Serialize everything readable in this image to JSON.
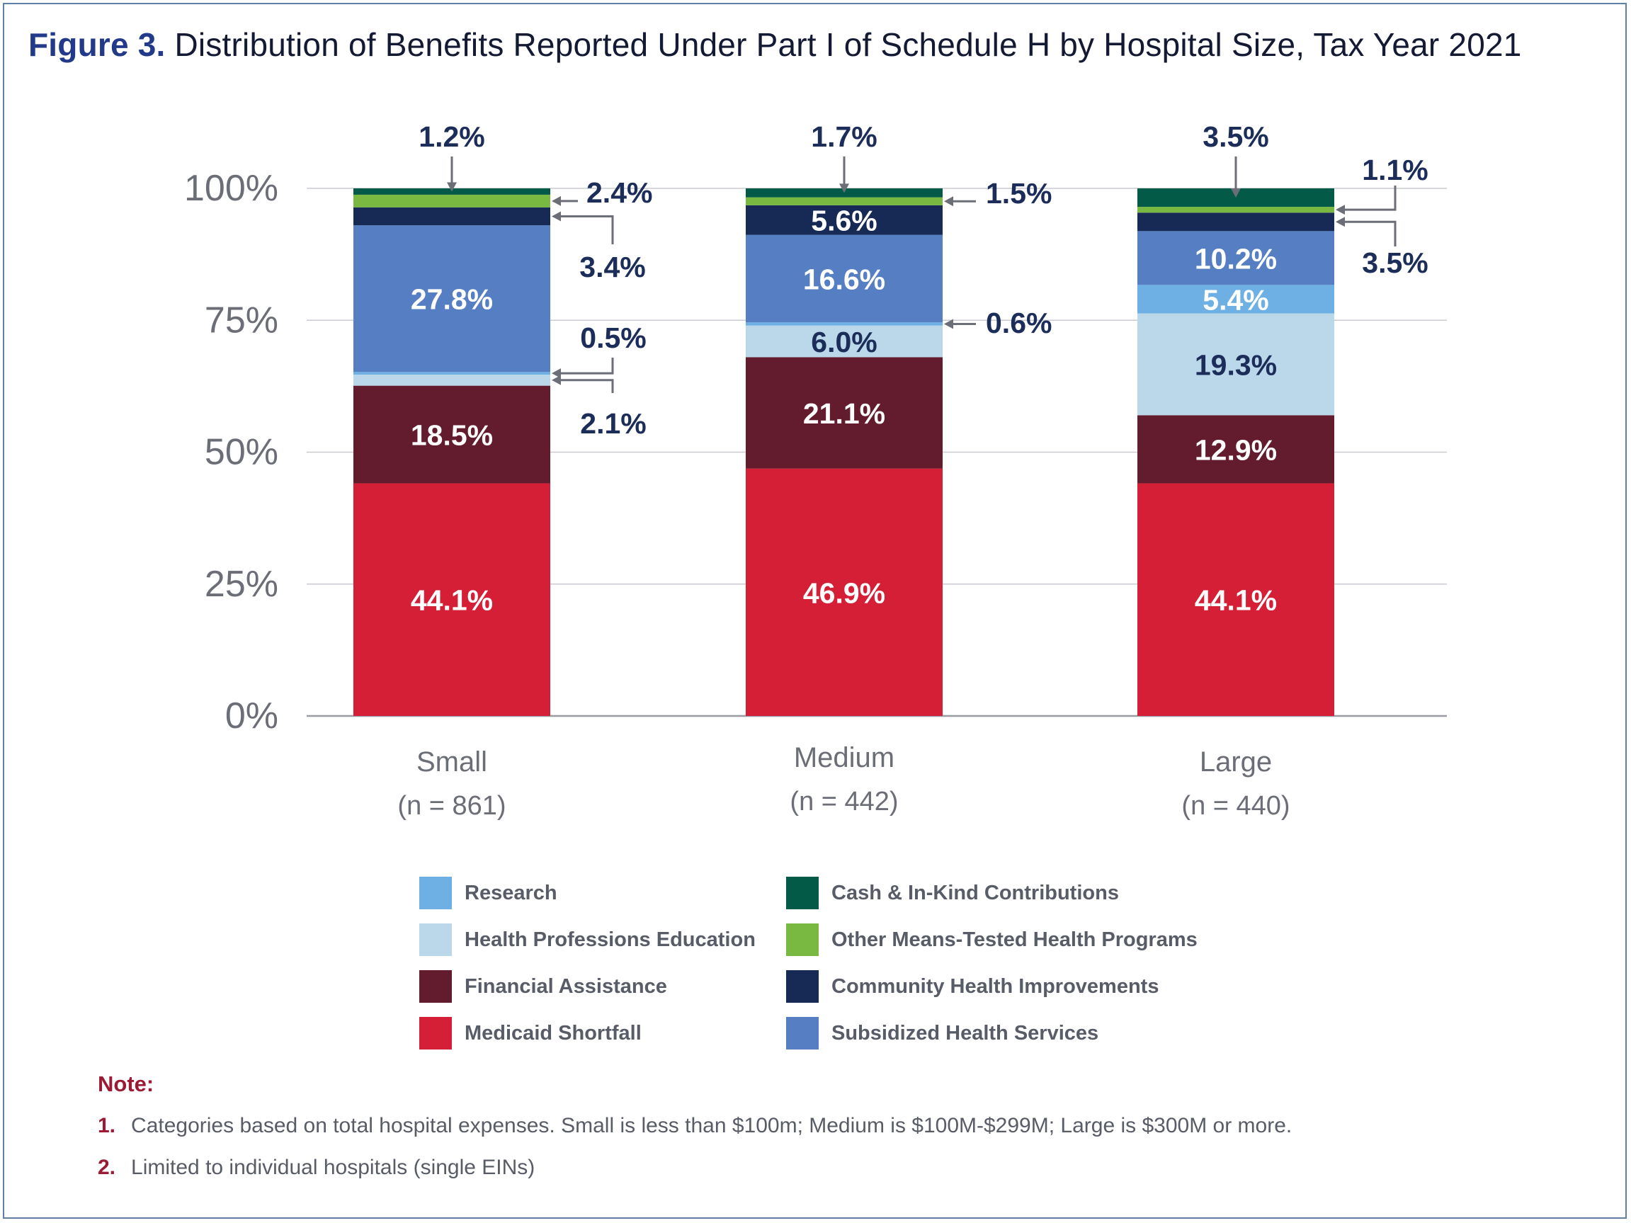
{
  "title": {
    "figure_label": "Figure 3.",
    "text": "Distribution of Benefits Reported Under Part I of Schedule H by Hospital Size, Tax Year 2021"
  },
  "chart_data": {
    "type": "bar",
    "stacked": true,
    "ylim": [
      0,
      100
    ],
    "y_ticks": [
      "0%",
      "25%",
      "50%",
      "75%",
      "100%"
    ],
    "y_tick_values": [
      0,
      25,
      50,
      75,
      100
    ],
    "categories": [
      "Small",
      "Medium",
      "Large"
    ],
    "category_counts": [
      "(n = 861)",
      "(n = 442)",
      "(n = 440)"
    ],
    "series": [
      {
        "name": "Medicaid Shortfall",
        "color": "#d41f36",
        "values": [
          44.1,
          46.9,
          44.1
        ],
        "labels": [
          "44.1%",
          "46.9%",
          "44.1%"
        ]
      },
      {
        "name": "Financial Assistance",
        "color": "#621c2e",
        "values": [
          18.5,
          21.1,
          12.9
        ],
        "labels": [
          "18.5%",
          "21.1%",
          "12.9%"
        ]
      },
      {
        "name": "Health Professions Education",
        "color": "#bad8ea",
        "values": [
          2.1,
          6.0,
          19.3
        ],
        "labels": [
          "2.1%",
          "6.0%",
          "19.3%"
        ]
      },
      {
        "name": "Research",
        "color": "#6eb0e4",
        "values": [
          0.5,
          0.6,
          5.4
        ],
        "labels": [
          "0.5%",
          "0.6%",
          "5.4%"
        ]
      },
      {
        "name": "Subsidized Health Services",
        "color": "#557fc2",
        "values": [
          27.8,
          16.6,
          10.2
        ],
        "labels": [
          "27.8%",
          "16.6%",
          "10.2%"
        ]
      },
      {
        "name": "Community Health Improvements",
        "color": "#162a55",
        "values": [
          3.4,
          5.6,
          3.5
        ],
        "labels": [
          "3.4%",
          "5.6%",
          "3.5%"
        ]
      },
      {
        "name": "Other Means-Tested Health Programs",
        "color": "#79b841",
        "values": [
          2.4,
          1.5,
          1.1
        ],
        "labels": [
          "2.4%",
          "1.5%",
          "1.1%"
        ]
      },
      {
        "name": "Cash & In-Kind Contributions",
        "color": "#035a47",
        "values": [
          1.2,
          1.7,
          3.5
        ],
        "labels": [
          "1.2%",
          "1.7%",
          "3.5%"
        ]
      }
    ]
  },
  "legend": {
    "items": [
      {
        "label": "Research",
        "color": "#6eb0e4"
      },
      {
        "label": "Health Professions Education",
        "color": "#bad8ea"
      },
      {
        "label": "Financial Assistance",
        "color": "#621c2e"
      },
      {
        "label": "Medicaid Shortfall",
        "color": "#d41f36"
      },
      {
        "label": "Cash & In-Kind Contributions",
        "color": "#035a47"
      },
      {
        "label": "Other Means-Tested Health Programs",
        "color": "#79b841"
      },
      {
        "label": "Community Health Improvements",
        "color": "#162a55"
      },
      {
        "label": "Subsidized Health Services",
        "color": "#557fc2"
      }
    ]
  },
  "notes": {
    "title": "Note:",
    "items": [
      {
        "num": "1.",
        "text": "Categories based on total hospital expenses. Small is less than $100m; Medium is $100M-$299M; Large is $300M or more."
      },
      {
        "num": "2.",
        "text": "Limited to individual hospitals (single EINs)"
      }
    ]
  }
}
